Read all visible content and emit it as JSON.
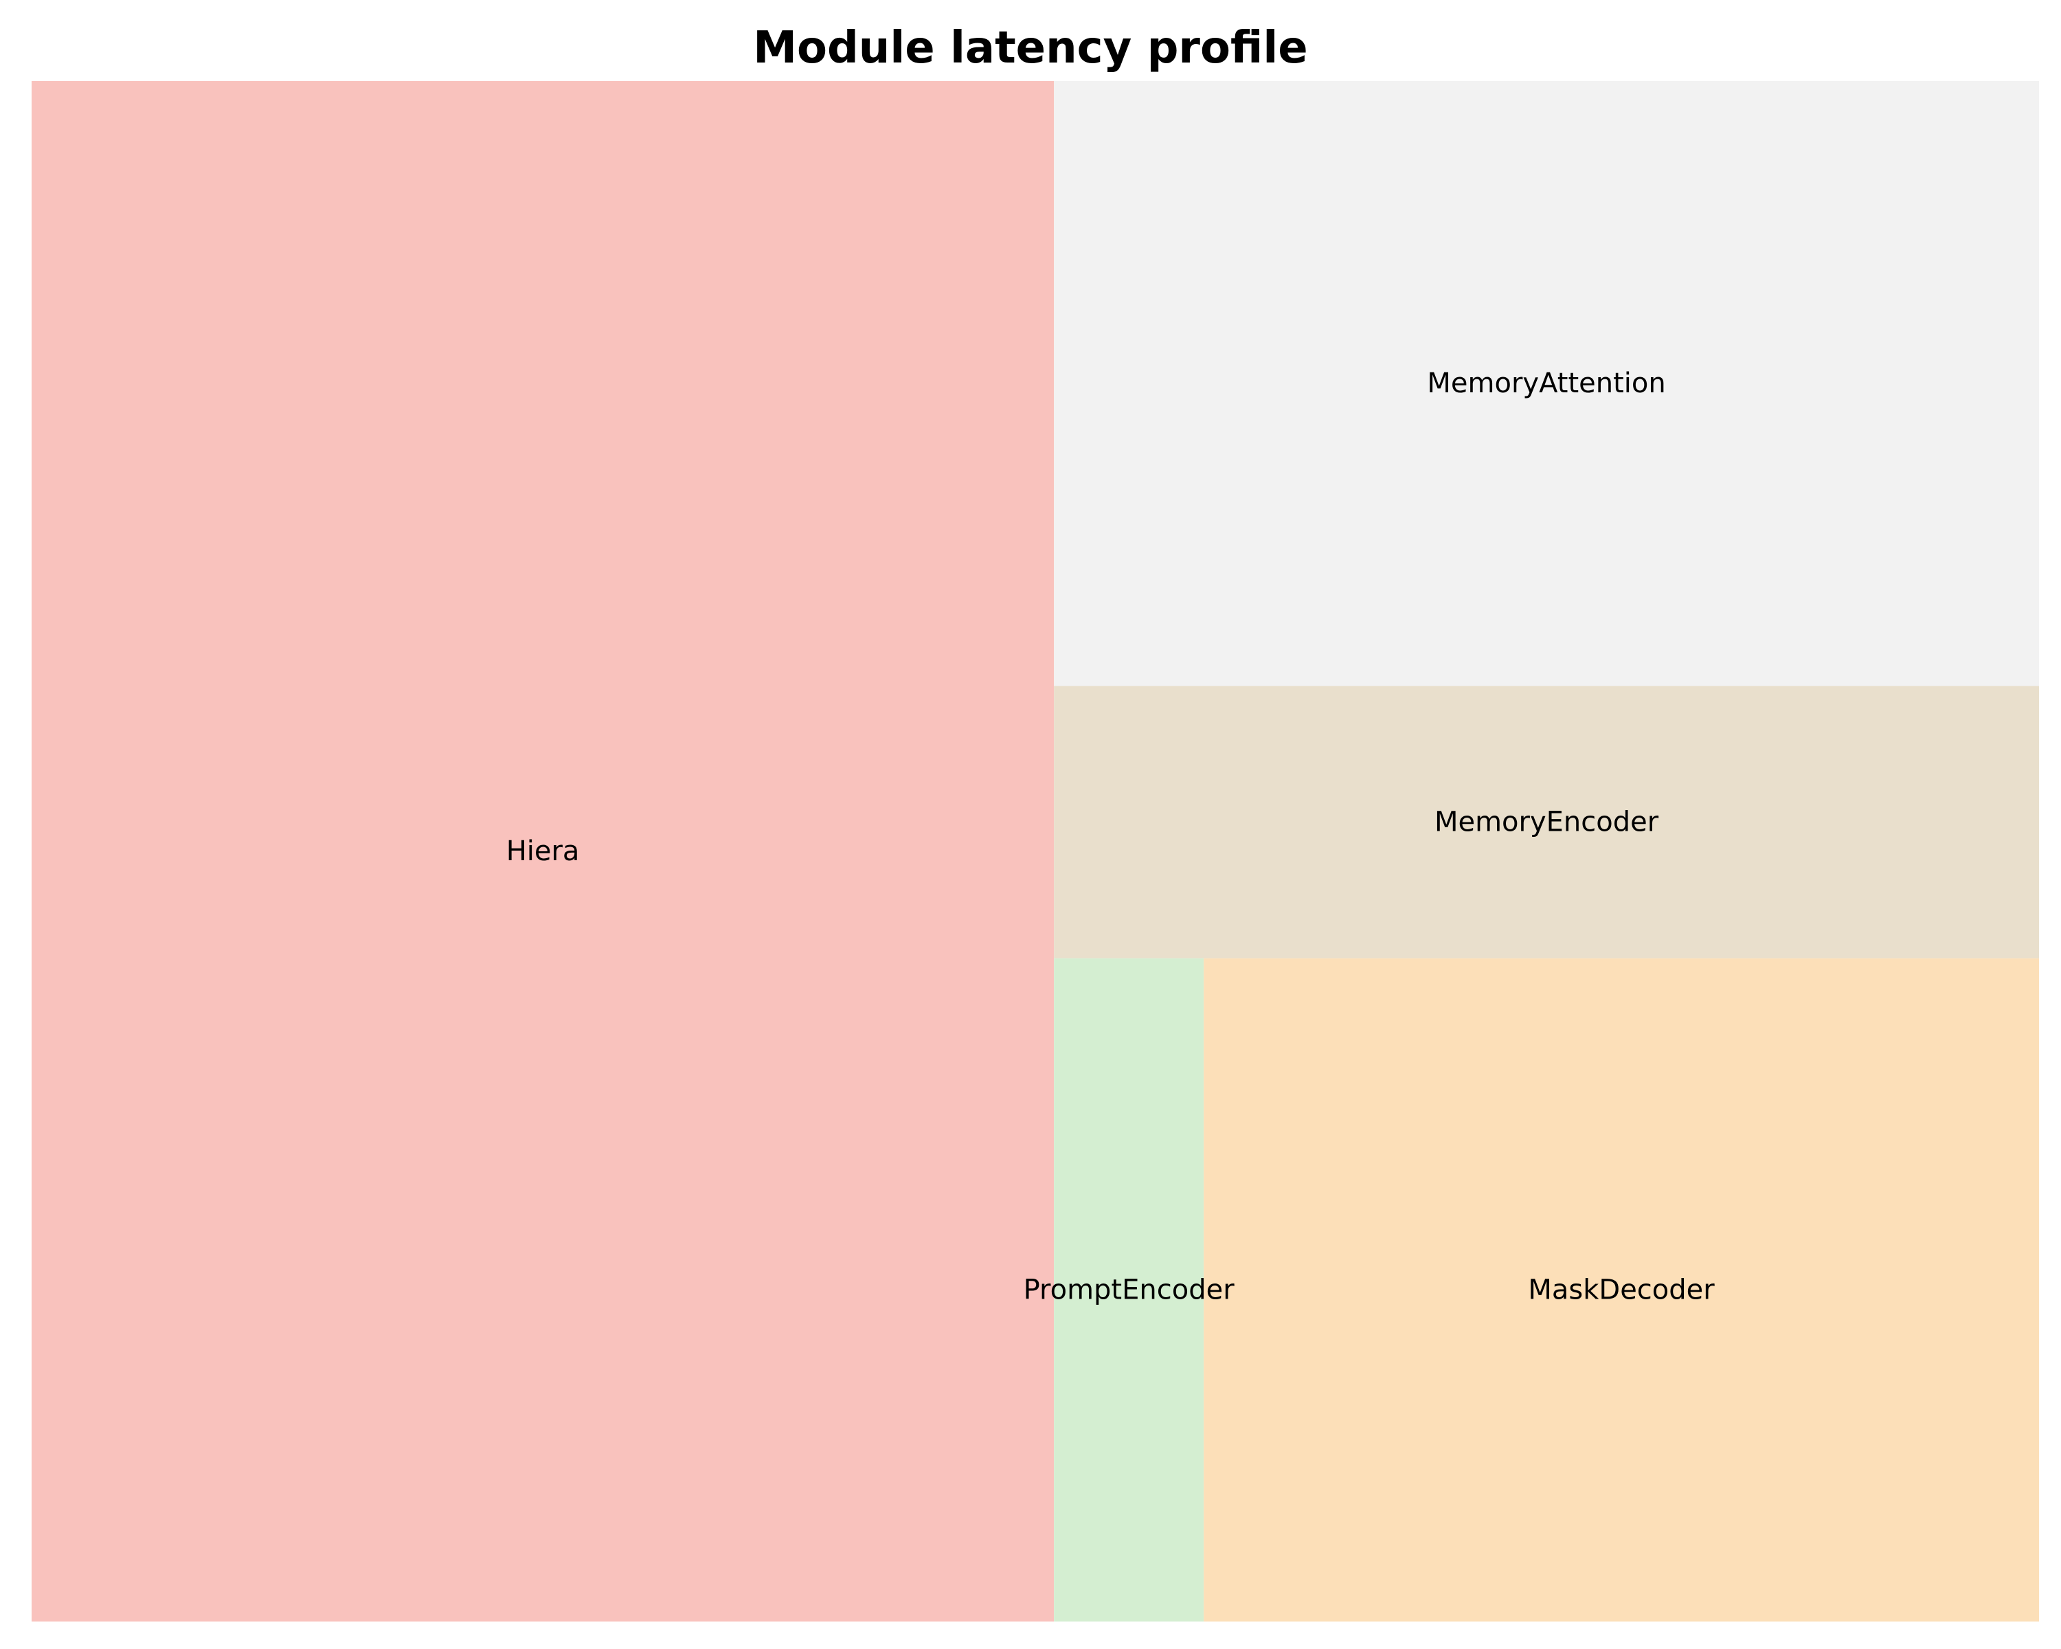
{
  "chart_data": {
    "type": "treemap",
    "title": "Module latency profile",
    "items": [
      {
        "label": "Hiera",
        "value": 904,
        "color": "#f9c2bd"
      },
      {
        "label": "MemoryAttention",
        "value": 342,
        "color": "#f2f2f2"
      },
      {
        "label": "MemoryEncoder",
        "value": 154,
        "color": "#e9dfcc"
      },
      {
        "label": "PromptEncoder",
        "value": 57,
        "color": "#d4eed1"
      },
      {
        "label": "MaskDecoder",
        "value": 318,
        "color": "#fcdfb8"
      }
    ]
  }
}
